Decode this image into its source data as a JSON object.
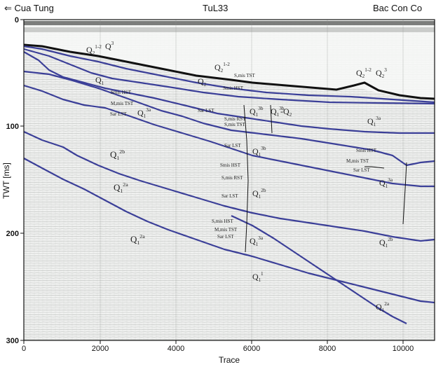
{
  "header": {
    "left_title": "⇐ Cua Tung",
    "center_title": "TuL33",
    "right_title": "Bac Con Co"
  },
  "axes": {
    "xlabel": "Trace",
    "ylabel": "TWT [ms]",
    "x_ticks": [
      "0",
      "2000",
      "4000",
      "6000",
      "8000",
      "10000"
    ],
    "y_ticks": [
      "0",
      "100",
      "200",
      "300"
    ]
  },
  "stratigraphy": [
    {
      "text": "Q",
      "sub": "2",
      "sup": "1-2"
    },
    {
      "text": "Q",
      "sub": "",
      "sup": "3"
    },
    {
      "text": "Q",
      "sub": "2",
      "sup": "1-2"
    },
    {
      "text": "Q",
      "sub": "2",
      "sup": "1-2"
    },
    {
      "text": "Q",
      "sub": "2",
      "sup": "3"
    },
    {
      "text": "Q",
      "sub": "1",
      "sup": ""
    },
    {
      "text": "Q",
      "sub": "2",
      "sup": ""
    },
    {
      "text": "Q",
      "sub": "1",
      "sup": "3a"
    },
    {
      "text": "Q",
      "sub": "1",
      "sup": "3b"
    },
    {
      "text": "Q",
      "sub": "1",
      "sup": "3b"
    },
    {
      "text": "Q",
      "sub": "1",
      "sup": "3a"
    },
    {
      "text": "-Q",
      "sub": "2",
      "sup": ""
    },
    {
      "text": "Q",
      "sub": "1",
      "sup": "3b"
    },
    {
      "text": "Q",
      "sub": "1",
      "sup": "3a"
    },
    {
      "text": "Q",
      "sub": "1",
      "sup": "2b"
    },
    {
      "text": "Q",
      "sub": "1",
      "sup": "2a"
    },
    {
      "text": "Q",
      "sub": "1",
      "sup": "2b"
    },
    {
      "text": "Q",
      "sub": "1",
      "sup": "3a"
    },
    {
      "text": "Q",
      "sub": "1",
      "sup": "2a"
    },
    {
      "text": "Q",
      "sub": "1",
      "sup": "2b"
    },
    {
      "text": "Q",
      "sub": "1",
      "sup": "1"
    },
    {
      "text": "Q",
      "sub": "1",
      "sup": "2a"
    },
    {
      "text": "Q",
      "sub": "1",
      "sup": "1"
    }
  ],
  "systems_tracts": [
    "S,mis TST",
    "Smis HST",
    "Smis HST",
    "M,mis TST",
    "Sar LST",
    "Sar LST",
    "S,mis RST",
    "S,mis TST",
    "Sar LST",
    "Smis HST",
    "S,mis RST",
    "Sar LST",
    "Smis HST",
    "M,mis TST",
    "Sar LST",
    "S,mis HST",
    "M,mis TST",
    "Sar LST"
  ]
}
